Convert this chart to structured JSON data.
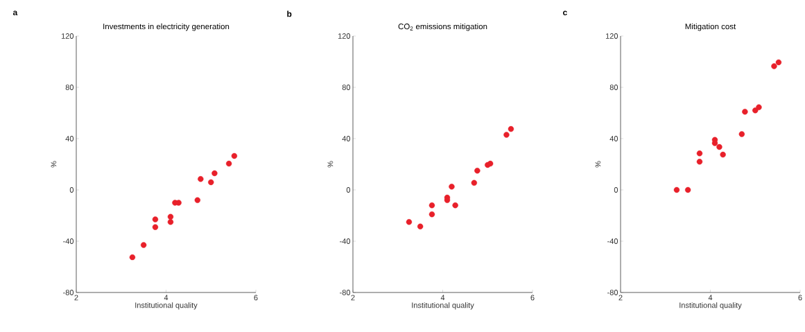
{
  "chart_data": [
    {
      "type": "scatter",
      "title": "Investments in electricity generation",
      "xlabel": "Institutional quality",
      "ylabel": "%",
      "annotations": [
        "a"
      ],
      "color": "#e8202a",
      "grid": false,
      "x": [
        3.25,
        3.5,
        3.76,
        3.76,
        4.1,
        4.1,
        4.2,
        4.28,
        4.7,
        4.77,
        5.0,
        5.08,
        5.4,
        5.52
      ],
      "values": [
        -52.5,
        -43,
        -23,
        -29,
        -21,
        -25,
        -10,
        -10,
        -8,
        8.5,
        6,
        13,
        20.5,
        26.5
      ],
      "xlim": [
        2,
        6
      ],
      "xticks": [
        2,
        4,
        6
      ],
      "ylim": [
        -80,
        120
      ],
      "yticks": [
        -80,
        -40,
        0,
        40,
        80,
        120
      ]
    },
    {
      "type": "scatter",
      "title": "CO$_{2}$ emissions mitigation",
      "xlabel": "Institutional quality",
      "ylabel": "%",
      "annotations": [
        "b"
      ],
      "color": "#e8202a",
      "grid": false,
      "x": [
        3.25,
        3.5,
        3.76,
        3.76,
        4.1,
        4.1,
        4.2,
        4.28,
        4.7,
        4.77,
        5.0,
        5.06,
        5.42,
        5.52
      ],
      "values": [
        -25,
        -28.5,
        -12,
        -19,
        -6,
        -8,
        2.5,
        -12,
        5.5,
        15,
        19.5,
        20.5,
        43,
        47.5
      ],
      "xlim": [
        2,
        6
      ],
      "xticks": [
        2,
        4,
        6
      ],
      "ylim": [
        -80,
        120
      ],
      "yticks": [
        -80,
        -40,
        0,
        40,
        80,
        120
      ]
    },
    {
      "type": "scatter",
      "title": "Mitigation cost",
      "xlabel": "Institutional quality",
      "ylabel": "%",
      "annotations": [
        "c"
      ],
      "color": "#e8202a",
      "grid": false,
      "x": [
        3.25,
        3.5,
        3.76,
        3.76,
        4.1,
        4.1,
        4.2,
        4.28,
        4.7,
        4.77,
        5.0,
        5.08,
        5.42,
        5.52
      ],
      "values": [
        0,
        0,
        28.5,
        22,
        39,
        36.5,
        33.5,
        27.5,
        43.5,
        61,
        62,
        64.5,
        96.5,
        99.5
      ],
      "xlim": [
        2,
        6
      ],
      "xticks": [
        2,
        4,
        6
      ],
      "ylim": [
        -80,
        120
      ],
      "yticks": [
        -80,
        -40,
        0,
        40,
        80,
        120
      ]
    }
  ]
}
